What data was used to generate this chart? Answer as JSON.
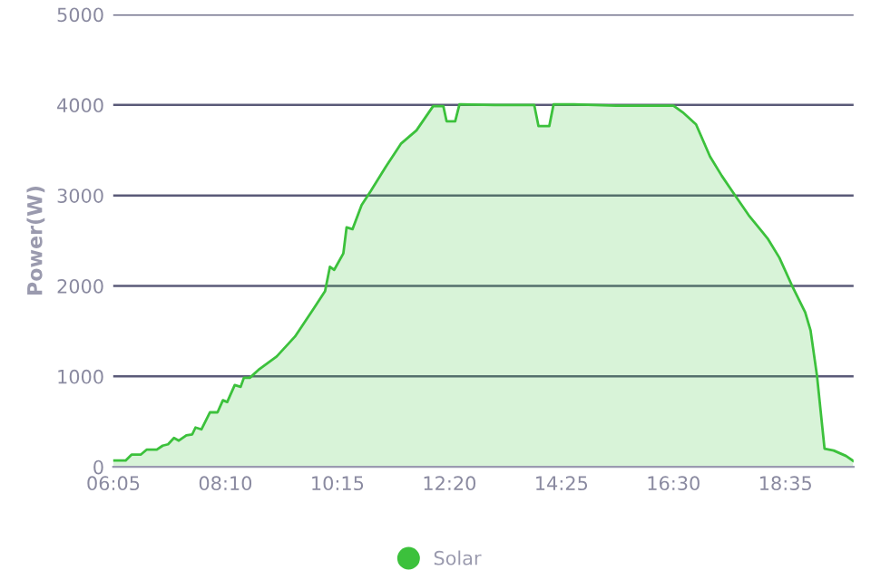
{
  "chart_data": {
    "type": "area",
    "ylabel": "Power(W)",
    "x": [
      6.08,
      6.31,
      6.42,
      6.59,
      6.7,
      6.89,
      7.0,
      7.1,
      7.21,
      7.3,
      7.44,
      7.55,
      7.61,
      7.72,
      7.88,
      8.02,
      8.12,
      8.2,
      8.34,
      8.45,
      8.51,
      8.62,
      8.78,
      9.12,
      9.46,
      9.8,
      10.02,
      10.11,
      10.19,
      10.36,
      10.42,
      10.53,
      10.7,
      10.87,
      11.15,
      11.43,
      11.72,
      12.03,
      12.22,
      12.28,
      12.44,
      12.52,
      13.18,
      13.91,
      13.99,
      14.19,
      14.27,
      14.65,
      15.43,
      16.5,
      16.67,
      16.92,
      17.18,
      17.4,
      17.63,
      17.9,
      18.25,
      18.47,
      18.7,
      18.95,
      19.05,
      19.17,
      19.31,
      19.48,
      19.71,
      19.84
    ],
    "series": [
      {
        "name": "Solar",
        "color": "#3cc13c",
        "values": [
          70,
          70,
          135,
          135,
          190,
          190,
          235,
          250,
          320,
          290,
          350,
          360,
          435,
          415,
          603,
          603,
          737,
          717,
          905,
          885,
          985,
          985,
          1072,
          1220,
          1440,
          1742,
          1943,
          2211,
          2178,
          2359,
          2647,
          2627,
          2895,
          3049,
          3317,
          3571,
          3719,
          3987,
          3987,
          3820,
          3820,
          4007,
          4000,
          4000,
          3766,
          3766,
          4007,
          4007,
          3993,
          3993,
          3920,
          3786,
          3430,
          3216,
          3015,
          2781,
          2526,
          2312,
          2010,
          1709,
          1508,
          1005,
          201,
          181,
          121,
          67
        ]
      }
    ],
    "xlim": [
      6.08,
      19.85
    ],
    "xticks": [
      {
        "value": 6.0833,
        "label": "06:05"
      },
      {
        "value": 8.1667,
        "label": "08:10"
      },
      {
        "value": 10.25,
        "label": "10:15"
      },
      {
        "value": 12.3333,
        "label": "12:20"
      },
      {
        "value": 14.4167,
        "label": "14:25"
      },
      {
        "value": 16.5,
        "label": "16:30"
      },
      {
        "value": 18.5833,
        "label": "18:35"
      }
    ],
    "ylim": [
      0,
      5000
    ],
    "yticks": [
      0,
      1000,
      2000,
      3000,
      4000,
      5000
    ],
    "grid": "y",
    "legend": "bottom"
  }
}
